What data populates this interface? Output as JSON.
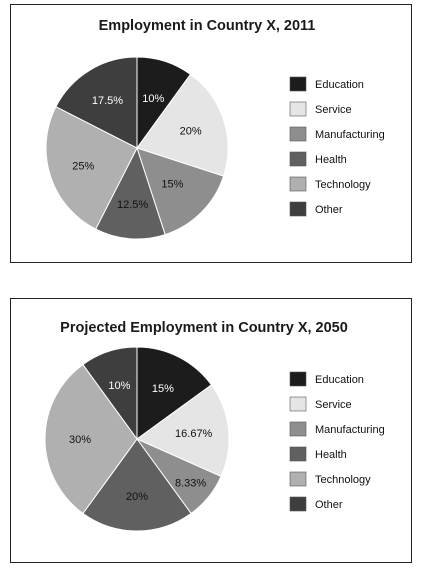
{
  "chart_data": [
    {
      "type": "pie",
      "title": "Employment in Country X, 2011",
      "categories": [
        "Education",
        "Service",
        "Manufacturing",
        "Health",
        "Technology",
        "Other"
      ],
      "values": [
        10,
        20,
        15,
        12.5,
        25,
        17.5
      ],
      "labels": [
        "10%",
        "20%",
        "15%",
        "12.5%",
        "25%",
        "17.5%"
      ],
      "colors": [
        "#1c1c1c",
        "#e5e5e5",
        "#8e8e8e",
        "#606060",
        "#b0b0b0",
        "#3e3e3e"
      ],
      "legend": "right"
    },
    {
      "type": "pie",
      "title": "Projected Employment in Country X, 2050",
      "categories": [
        "Education",
        "Service",
        "Manufacturing",
        "Health",
        "Technology",
        "Other"
      ],
      "values": [
        15,
        16.67,
        8.33,
        20,
        30,
        10
      ],
      "labels": [
        "15%",
        "16.67%",
        "8.33%",
        "20%",
        "30%",
        "10%"
      ],
      "colors": [
        "#1c1c1c",
        "#e5e5e5",
        "#8e8e8e",
        "#606060",
        "#b0b0b0",
        "#3e3e3e"
      ],
      "legend": "right"
    }
  ]
}
